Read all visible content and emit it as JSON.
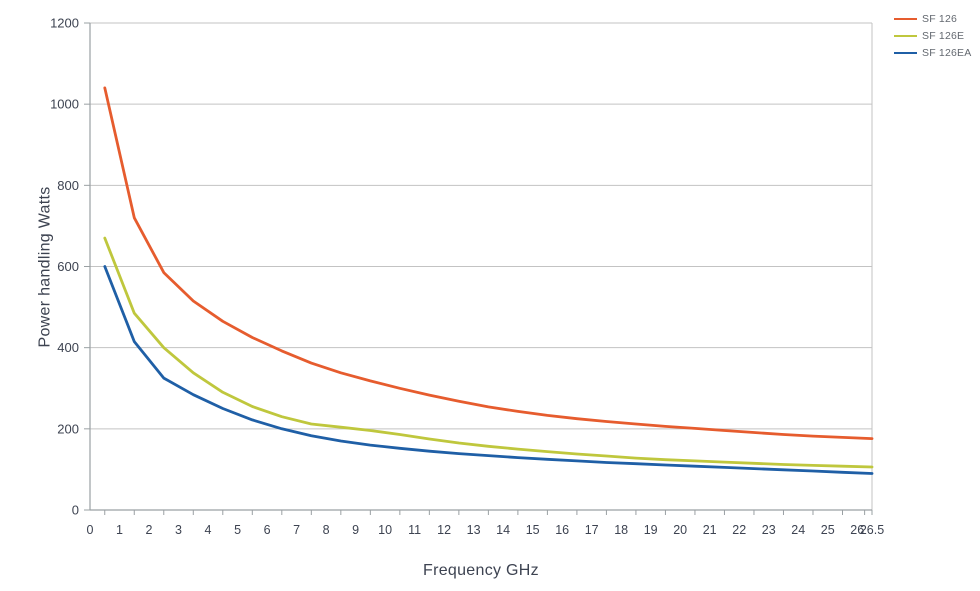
{
  "chart_data": {
    "type": "line",
    "title": "",
    "xlabel": "Frequency GHz",
    "ylabel": "Power handling Watts",
    "xlim": [
      0,
      26.5
    ],
    "ylim": [
      0,
      1200
    ],
    "grid": "horizontal",
    "legend_position": "top-right",
    "x_tick_values": [
      0,
      1,
      2,
      3,
      4,
      5,
      6,
      7,
      8,
      9,
      10,
      11,
      12,
      13,
      14,
      15,
      16,
      17,
      18,
      19,
      20,
      21,
      22,
      23,
      24,
      25,
      26,
      26.5
    ],
    "x_tick_labels": [
      "0",
      "1",
      "2",
      "3",
      "4",
      "5",
      "6",
      "7",
      "8",
      "9",
      "10",
      "11",
      "12",
      "13",
      "14",
      "15",
      "16",
      "17",
      "18",
      "19",
      "20",
      "21",
      "22",
      "23",
      "24",
      "25",
      "26",
      "26.5"
    ],
    "y_tick_values": [
      0,
      200,
      400,
      600,
      800,
      1000,
      1200
    ],
    "y_tick_labels": [
      "0",
      "200",
      "400",
      "600",
      "800",
      "1000",
      "1200"
    ],
    "x": [
      0.5,
      1.5,
      2.5,
      3.5,
      4.5,
      5.5,
      6.5,
      7.5,
      8.5,
      9.5,
      10.5,
      11.5,
      12.5,
      13.5,
      14.5,
      15.5,
      16.5,
      17.5,
      18.5,
      19.5,
      20.5,
      21.5,
      22.5,
      23.5,
      24.5,
      25.5,
      26.5
    ],
    "series": [
      {
        "name": "SF 126",
        "color": "#E65C2E",
        "values": [
          1040,
          720,
          585,
          515,
          465,
          425,
          392,
          362,
          338,
          318,
          300,
          283,
          268,
          254,
          243,
          233,
          225,
          218,
          212,
          206,
          201,
          196,
          191,
          186,
          182,
          179,
          176
        ]
      },
      {
        "name": "SF 126E",
        "color": "#BFC73D",
        "values": [
          670,
          485,
          400,
          338,
          290,
          255,
          230,
          212,
          204,
          196,
          186,
          175,
          165,
          157,
          150,
          144,
          138,
          133,
          128,
          124,
          121,
          118,
          115,
          112,
          110,
          108,
          106
        ]
      },
      {
        "name": "SF 126EA",
        "color": "#1F5FA6",
        "values": [
          600,
          415,
          325,
          284,
          250,
          222,
          200,
          183,
          170,
          160,
          152,
          145,
          139,
          134,
          129,
          125,
          121,
          117,
          114,
          111,
          108,
          105,
          102,
          99,
          96,
          93,
          90
        ]
      }
    ],
    "colors": {
      "gridline": "#c3c3c3",
      "axis": "#9aa0a3",
      "tick_label": "#3d4351",
      "axis_title": "#3d4351",
      "legend_text": "#63686f"
    }
  }
}
